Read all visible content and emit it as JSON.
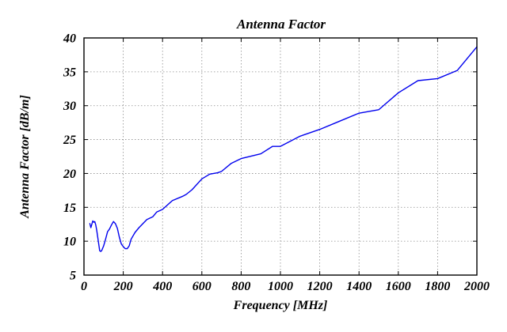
{
  "chart_data": {
    "type": "line",
    "title": "Antenna Factor",
    "xlabel": "Frequency [MHz]",
    "ylabel": "Antenna Factor [dB/m]",
    "xlim": [
      0,
      2000
    ],
    "ylim": [
      5,
      40
    ],
    "grid": true,
    "x_ticks": [
      0,
      200,
      400,
      600,
      800,
      1000,
      1200,
      1400,
      1600,
      1800,
      2000
    ],
    "y_ticks": [
      5,
      10,
      15,
      20,
      25,
      30,
      35,
      40
    ],
    "series": [
      {
        "name": "Antenna Factor",
        "color": "#0000ee",
        "x": [
          30,
          35,
          40,
          45,
          50,
          55,
          60,
          65,
          70,
          75,
          80,
          85,
          90,
          100,
          110,
          120,
          130,
          140,
          150,
          160,
          170,
          180,
          190,
          200,
          210,
          220,
          230,
          240,
          260,
          280,
          300,
          320,
          350,
          370,
          400,
          450,
          500,
          520,
          550,
          600,
          640,
          680,
          700,
          750,
          800,
          900,
          960,
          1000,
          1100,
          1200,
          1300,
          1400,
          1500,
          1600,
          1700,
          1800,
          1900,
          2000
        ],
        "y": [
          12.6,
          12.0,
          12.5,
          13.0,
          12.8,
          12.9,
          12.4,
          11.6,
          10.6,
          9.6,
          8.6,
          8.5,
          8.6,
          9.3,
          10.3,
          11.4,
          11.8,
          12.4,
          12.9,
          12.6,
          11.9,
          10.6,
          9.6,
          9.2,
          8.9,
          8.9,
          9.3,
          10.3,
          11.3,
          12.0,
          12.6,
          13.2,
          13.6,
          14.3,
          14.7,
          16.0,
          16.6,
          16.9,
          17.6,
          19.2,
          19.9,
          20.1,
          20.3,
          21.5,
          22.2,
          22.9,
          24.0,
          24.0,
          25.5,
          26.5,
          27.7,
          28.9,
          29.4,
          31.9,
          33.7,
          34.0,
          35.2,
          38.7
        ]
      }
    ]
  }
}
